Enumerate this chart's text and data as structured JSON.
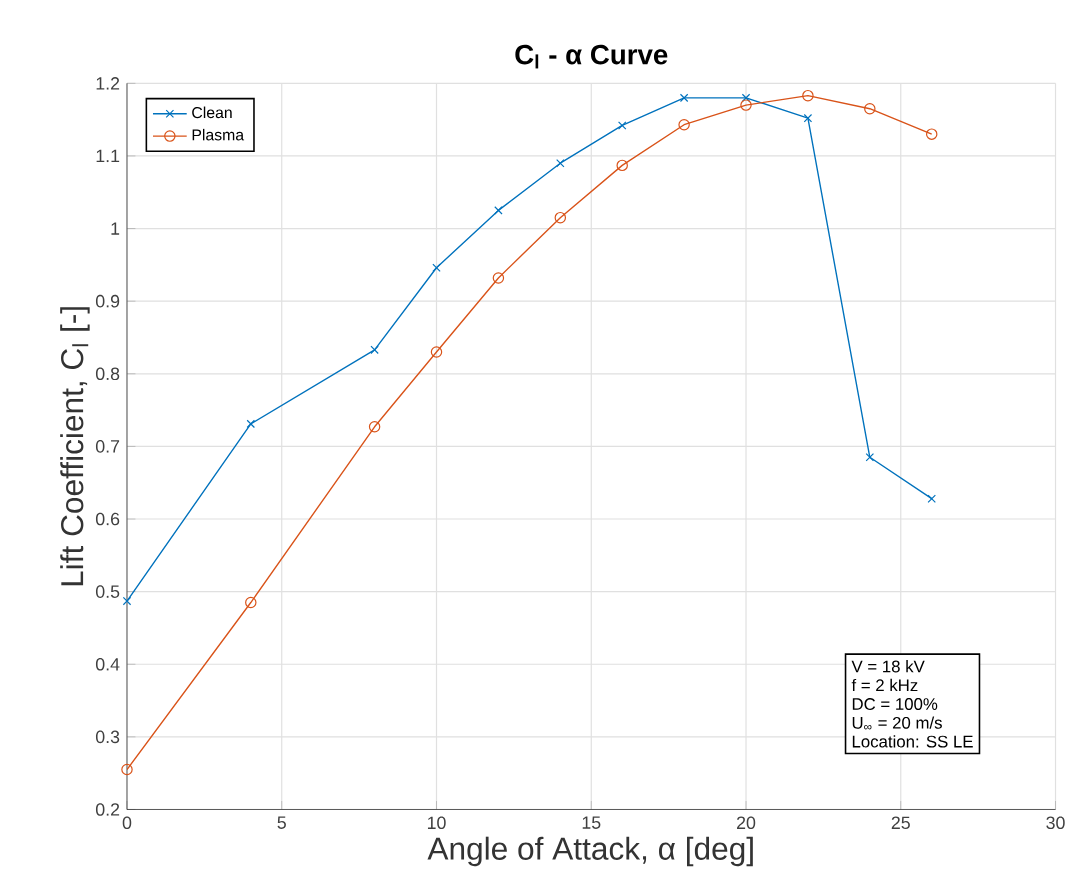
{
  "chart_data": {
    "type": "line",
    "title": "C$_{l}$ - α Curve",
    "xlabel": "Angle of Attack, α [deg]",
    "ylabel": "Lift Coefficient, C$_{l}$ [-]",
    "x": [
      0,
      4,
      8,
      10,
      12,
      14,
      16,
      18,
      20,
      22,
      24,
      26
    ],
    "series": [
      {
        "name": "Clean",
        "color": "#0072bd",
        "marker": "cross",
        "values": [
          0.487,
          0.731,
          0.833,
          0.946,
          1.025,
          1.09,
          1.142,
          1.18,
          1.18,
          1.152,
          0.685,
          0.628
        ]
      },
      {
        "name": "Plasma",
        "color": "#d95319",
        "marker": "circle",
        "values": [
          0.255,
          0.485,
          0.727,
          0.83,
          0.932,
          1.015,
          1.087,
          1.143,
          1.17,
          1.183,
          1.165,
          1.13
        ]
      }
    ],
    "xlim": [
      0,
      30
    ],
    "xticks": [
      0,
      5,
      10,
      15,
      20,
      25,
      30
    ],
    "ylim": [
      0.2,
      1.2
    ],
    "yticks": [
      0.2,
      0.3,
      0.4,
      0.5,
      0.6,
      0.7,
      0.8,
      0.9,
      1,
      1.1,
      1.2
    ],
    "grid": true,
    "legend": "top left",
    "line_style": "solid",
    "annotations": [
      "V = 18 kV",
      "f = 2 kHz",
      "DC = 100%",
      "U$_{∞}$ = 20 m/s",
      "Location: SS LE"
    ]
  }
}
